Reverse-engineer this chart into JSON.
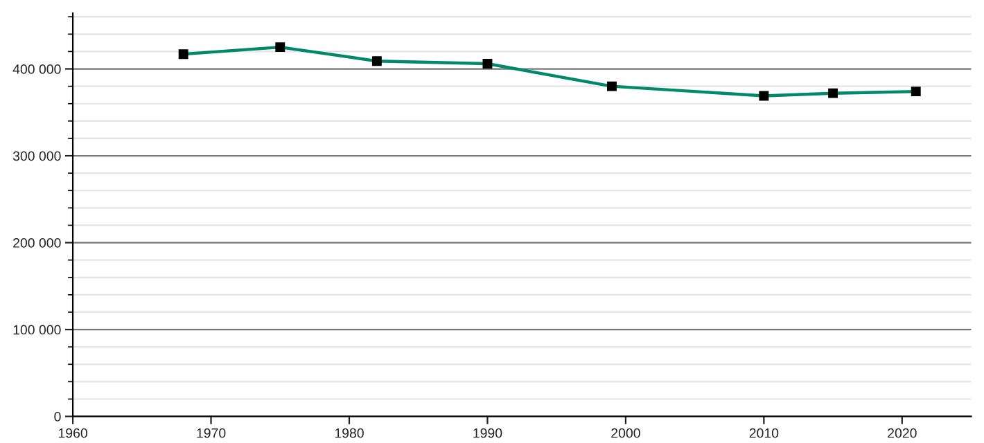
{
  "chart_data": {
    "type": "line",
    "x": [
      1968,
      1975,
      1982,
      1990,
      1999,
      2010,
      2015,
      2021
    ],
    "series": [
      {
        "color": "#00896b",
        "values": [
          417000,
          425000,
          409000,
          406000,
          380000,
          369000,
          372000,
          374000
        ]
      }
    ],
    "xlim": [
      1960,
      2025
    ],
    "xticks": [
      1960,
      1970,
      1980,
      1990,
      2000,
      2010,
      2020
    ],
    "ylim": [
      0,
      464000
    ],
    "yticks": [
      0,
      {
        "value": 100000,
        "label": "100 000"
      },
      {
        "value": 200000,
        "label": "200 000"
      },
      {
        "value": 300000,
        "label": "300 000"
      },
      {
        "value": 400000,
        "label": "400 000"
      }
    ],
    "grid": "y",
    "marker": "square",
    "line_style": "solid",
    "legend": false
  }
}
